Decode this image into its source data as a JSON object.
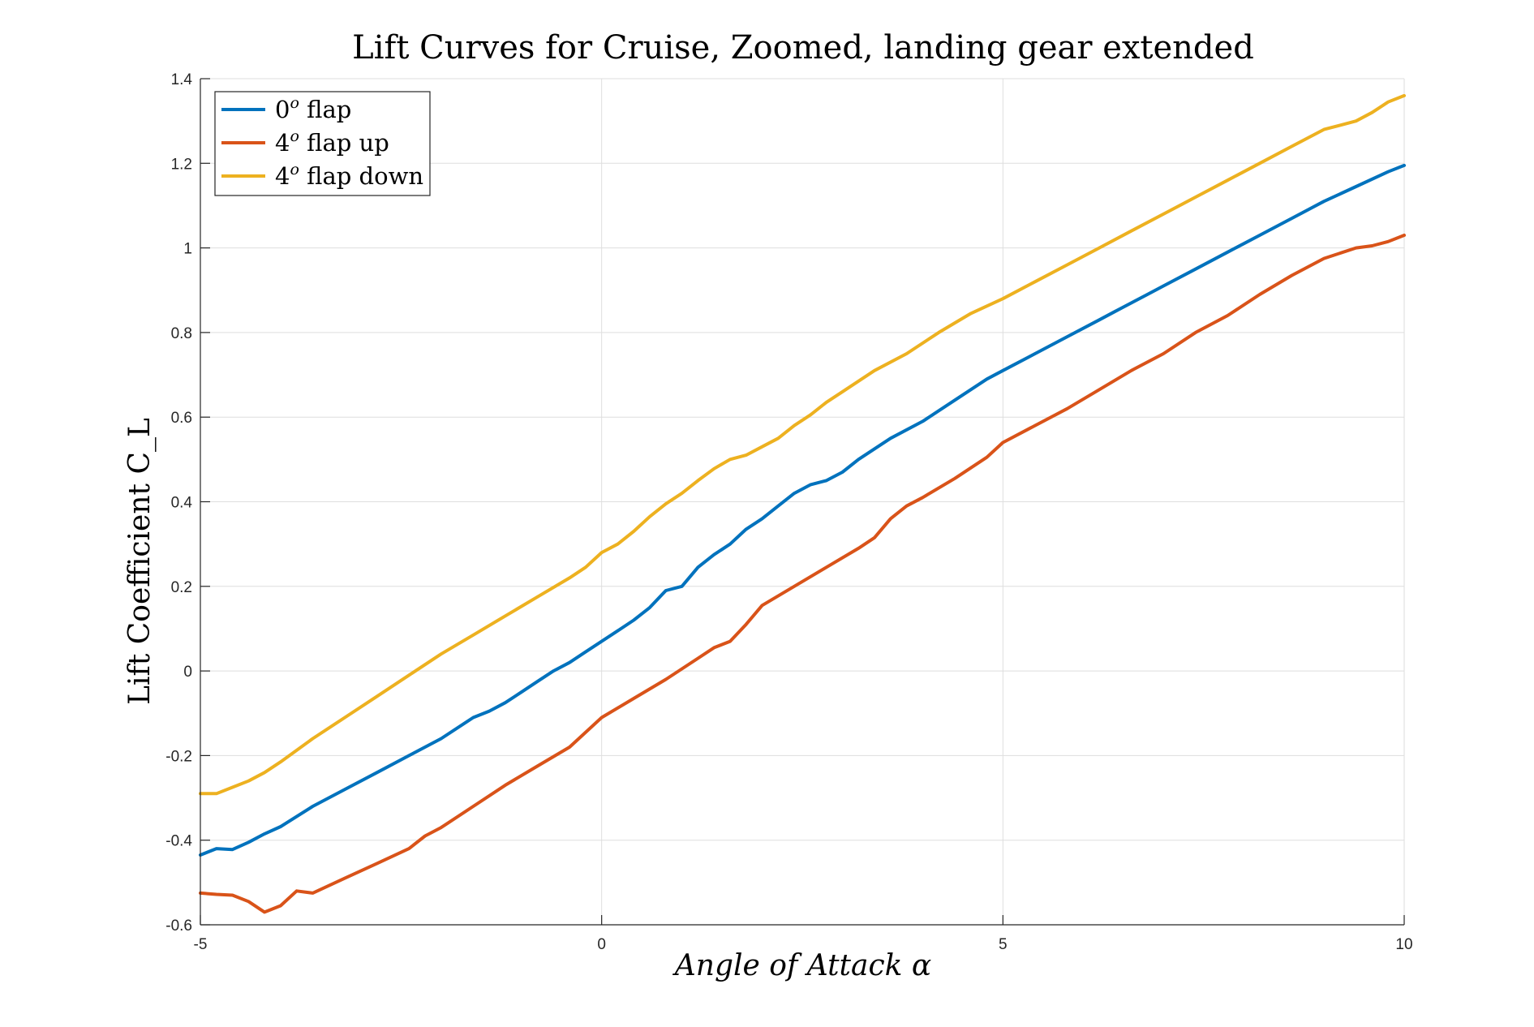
{
  "chart_data": {
    "type": "line",
    "title": "Lift Curves for Cruise, Zoomed, landing gear extended",
    "xlabel": "Angle of Attack α",
    "ylabel": "Lift Coefficient C_L",
    "xlim": [
      -5,
      10
    ],
    "ylim": [
      -0.6,
      1.4
    ],
    "xticks": [
      -5,
      0,
      5,
      10
    ],
    "xtick_labels": [
      "-5",
      "0",
      "5",
      "10"
    ],
    "yticks": [
      -0.6,
      -0.4,
      -0.2,
      0,
      0.2,
      0.4,
      0.6,
      0.8,
      1,
      1.2,
      1.4
    ],
    "ytick_labels": [
      "-0.6",
      "-0.4",
      "-0.2",
      "0",
      "0.2",
      "0.4",
      "0.6",
      "0.8",
      "1",
      "1.2",
      "1.4"
    ],
    "grid": true,
    "legend_position": "top-left",
    "series": [
      {
        "name": "0° flap",
        "legend_main": "0",
        "legend_sup": "o",
        "legend_rest": " flap",
        "color": "#0072BD",
        "x": [
          -5,
          -4.8,
          -4.6,
          -4.4,
          -4.2,
          -4.0,
          -3.6,
          -3.2,
          -2.8,
          -2.4,
          -2.0,
          -1.6,
          -1.4,
          -1.2,
          -1.0,
          -0.8,
          -0.6,
          -0.4,
          -0.2,
          0,
          0.2,
          0.4,
          0.6,
          0.8,
          1.0,
          1.2,
          1.4,
          1.6,
          1.8,
          2.0,
          2.2,
          2.4,
          2.6,
          2.8,
          3.0,
          3.2,
          3.6,
          4.0,
          4.4,
          4.8,
          5.0,
          5.4,
          5.8,
          6.2,
          6.4,
          6.8,
          7.0,
          7.4,
          7.8,
          8.2,
          8.6,
          9.0,
          9.4,
          9.8,
          10
        ],
        "y": [
          -0.435,
          -0.42,
          -0.422,
          -0.405,
          -0.385,
          -0.368,
          -0.32,
          -0.28,
          -0.24,
          -0.2,
          -0.16,
          -0.11,
          -0.095,
          -0.075,
          -0.05,
          -0.025,
          0.0,
          0.02,
          0.045,
          0.07,
          0.095,
          0.12,
          0.15,
          0.19,
          0.2,
          0.245,
          0.275,
          0.3,
          0.335,
          0.36,
          0.39,
          0.42,
          0.44,
          0.45,
          0.47,
          0.5,
          0.55,
          0.59,
          0.64,
          0.69,
          0.71,
          0.75,
          0.79,
          0.83,
          0.85,
          0.89,
          0.91,
          0.95,
          0.99,
          1.03,
          1.07,
          1.11,
          1.145,
          1.18,
          1.195
        ]
      },
      {
        "name": "4° flap up",
        "legend_main": "4",
        "legend_sup": "o",
        "legend_rest": " flap up",
        "color": "#D95319",
        "x": [
          -5,
          -4.8,
          -4.6,
          -4.4,
          -4.2,
          -4.0,
          -3.8,
          -3.6,
          -3.2,
          -2.8,
          -2.4,
          -2.2,
          -2.0,
          -1.6,
          -1.2,
          -0.8,
          -0.4,
          0,
          0.4,
          0.8,
          1.0,
          1.2,
          1.4,
          1.6,
          1.8,
          2.0,
          2.4,
          2.8,
          3.2,
          3.4,
          3.6,
          3.8,
          4.0,
          4.4,
          4.8,
          5.0,
          5.4,
          5.8,
          6.2,
          6.6,
          7.0,
          7.4,
          7.8,
          8.2,
          8.6,
          9.0,
          9.4,
          9.6,
          9.8,
          10
        ],
        "y": [
          -0.525,
          -0.528,
          -0.53,
          -0.545,
          -0.57,
          -0.555,
          -0.52,
          -0.525,
          -0.49,
          -0.455,
          -0.42,
          -0.39,
          -0.37,
          -0.32,
          -0.27,
          -0.225,
          -0.18,
          -0.11,
          -0.065,
          -0.02,
          0.005,
          0.03,
          0.055,
          0.07,
          0.11,
          0.155,
          0.2,
          0.245,
          0.29,
          0.315,
          0.36,
          0.39,
          0.41,
          0.455,
          0.505,
          0.54,
          0.58,
          0.62,
          0.665,
          0.71,
          0.75,
          0.8,
          0.84,
          0.89,
          0.935,
          0.975,
          1.0,
          1.005,
          1.015,
          1.03
        ]
      },
      {
        "name": "4° flap down",
        "legend_main": "4",
        "legend_sup": "o",
        "legend_rest": " flap down",
        "color": "#EDB120",
        "x": [
          -5,
          -4.8,
          -4.6,
          -4.4,
          -4.2,
          -4.0,
          -3.6,
          -3.2,
          -2.8,
          -2.4,
          -2.0,
          -1.6,
          -1.2,
          -0.8,
          -0.4,
          -0.2,
          0,
          0.2,
          0.4,
          0.6,
          0.8,
          1.0,
          1.2,
          1.4,
          1.6,
          1.8,
          2.0,
          2.2,
          2.4,
          2.6,
          2.8,
          3.0,
          3.4,
          3.8,
          4.2,
          4.6,
          5.0,
          5.4,
          5.8,
          6.2,
          6.6,
          7.0,
          7.4,
          7.8,
          8.2,
          8.6,
          9.0,
          9.2,
          9.4,
          9.6,
          9.8,
          10
        ],
        "y": [
          -0.29,
          -0.29,
          -0.275,
          -0.26,
          -0.24,
          -0.215,
          -0.16,
          -0.11,
          -0.06,
          -0.01,
          0.04,
          0.085,
          0.13,
          0.175,
          0.22,
          0.245,
          0.28,
          0.3,
          0.33,
          0.365,
          0.395,
          0.42,
          0.45,
          0.478,
          0.5,
          0.51,
          0.53,
          0.55,
          0.58,
          0.605,
          0.635,
          0.66,
          0.71,
          0.75,
          0.8,
          0.845,
          0.88,
          0.92,
          0.96,
          1.0,
          1.04,
          1.08,
          1.12,
          1.16,
          1.2,
          1.24,
          1.28,
          1.29,
          1.3,
          1.32,
          1.345,
          1.36
        ]
      }
    ]
  }
}
